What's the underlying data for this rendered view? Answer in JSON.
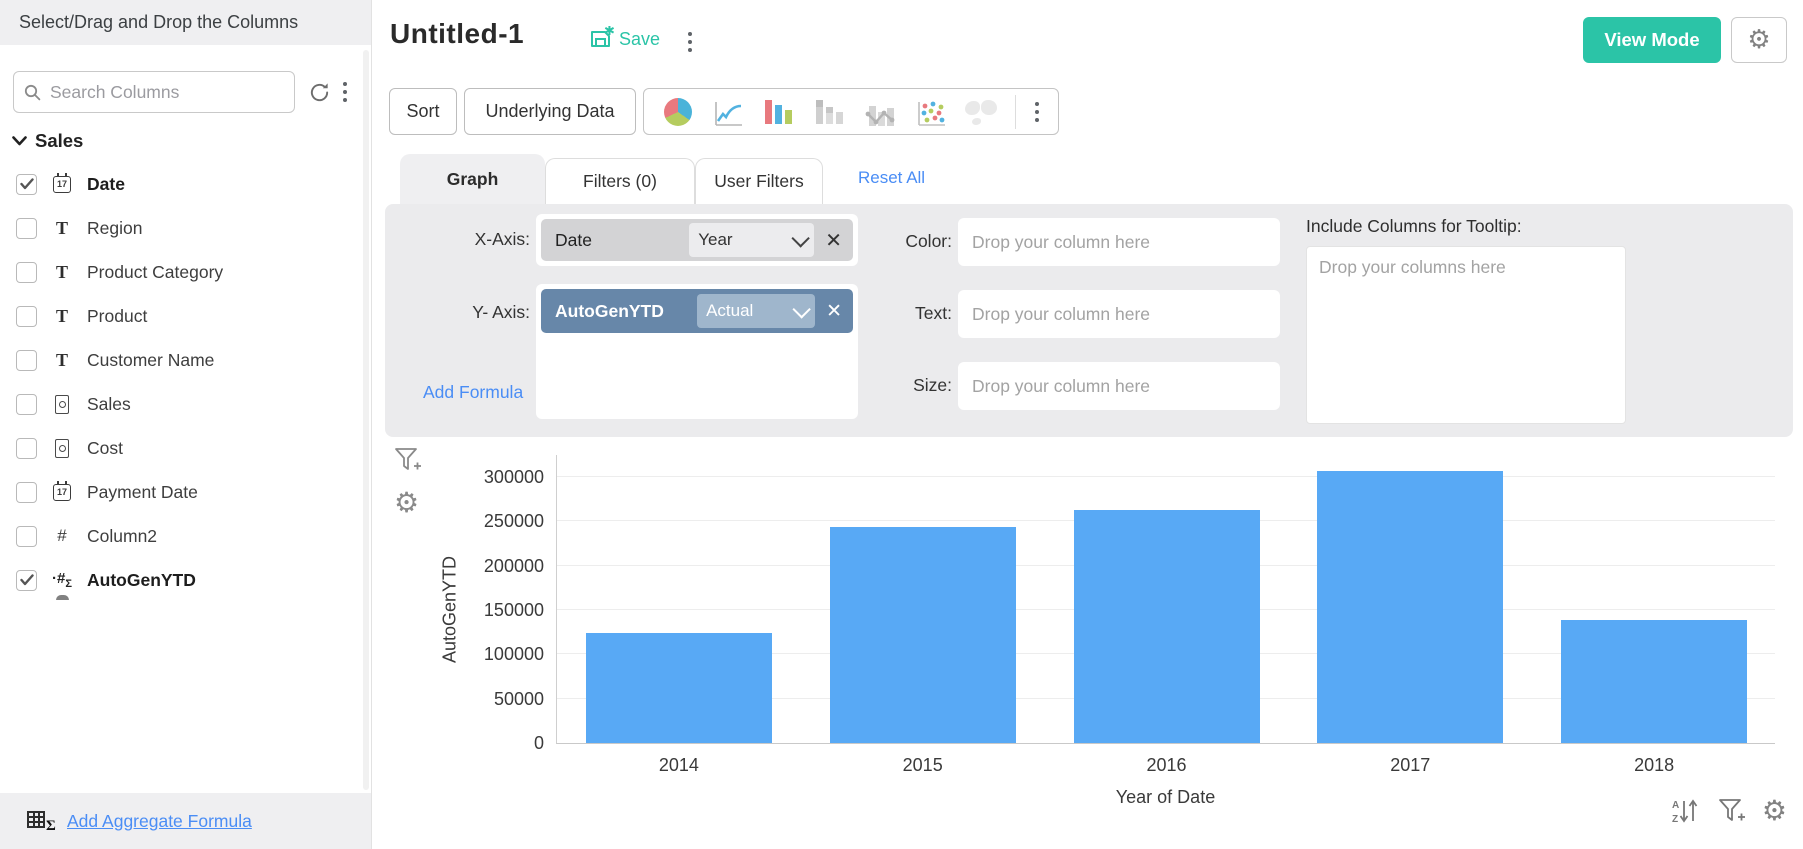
{
  "sidebar": {
    "header": "Select/Drag and Drop the Columns",
    "search_placeholder": "Search Columns",
    "section_label": "Sales",
    "items": [
      {
        "label": "Date",
        "type": "date",
        "checked": true,
        "bold": true
      },
      {
        "label": "Region",
        "type": "text",
        "checked": false,
        "bold": false
      },
      {
        "label": "Product Category",
        "type": "text",
        "checked": false,
        "bold": false
      },
      {
        "label": "Product",
        "type": "text",
        "checked": false,
        "bold": false
      },
      {
        "label": "Customer Name",
        "type": "text",
        "checked": false,
        "bold": false
      },
      {
        "label": "Sales",
        "type": "currency",
        "checked": false,
        "bold": false
      },
      {
        "label": "Cost",
        "type": "currency",
        "checked": false,
        "bold": false
      },
      {
        "label": "Payment Date",
        "type": "date",
        "checked": false,
        "bold": false
      },
      {
        "label": "Column2",
        "type": "number",
        "checked": false,
        "bold": false
      },
      {
        "label": "AutoGenYTD",
        "type": "formula",
        "checked": true,
        "bold": true
      }
    ],
    "footer_link": "Add Aggregate Formula"
  },
  "header": {
    "title": "Untitled-1",
    "save_label": "Save",
    "view_mode_label": "View Mode"
  },
  "toolbar": {
    "sort_label": "Sort",
    "underlying_data_label": "Underlying Data",
    "chart_icons": [
      {
        "name": "pie-chart-icon"
      },
      {
        "name": "line-chart-icon"
      },
      {
        "name": "bar-chart-icon"
      },
      {
        "name": "stacked-bar-chart-icon"
      },
      {
        "name": "combo-chart-icon"
      },
      {
        "name": "scatter-chart-icon"
      },
      {
        "name": "map-chart-icon"
      }
    ]
  },
  "tabs": {
    "graph": "Graph",
    "filters": "Filters (0)",
    "user_filters": "User Filters",
    "reset_all": "Reset All"
  },
  "axis_panel": {
    "x_axis_label": "X-Axis:",
    "x_column": "Date",
    "x_function": "Year",
    "y_axis_label": "Y- Axis:",
    "y_column": "AutoGenYTD",
    "y_function": "Actual",
    "add_formula": "Add Formula",
    "color_label": "Color:",
    "text_label": "Text:",
    "size_label": "Size:",
    "drop_column_placeholder": "Drop your column here",
    "tooltip_label": "Include Columns for Tooltip:",
    "tooltip_placeholder": "Drop your columns here"
  },
  "chart_data": {
    "type": "bar",
    "categories": [
      "2014",
      "2015",
      "2016",
      "2017",
      "2018"
    ],
    "values": [
      124000,
      244000,
      263000,
      307000,
      139000
    ],
    "title": "",
    "xlabel": "Year of Date",
    "ylabel": "AutoGenYTD",
    "yticks": [
      0,
      50000,
      100000,
      150000,
      200000,
      250000,
      300000
    ],
    "ylim": [
      0,
      300000
    ],
    "grid": true,
    "legend": "none",
    "bar_color": "#58a9f5"
  },
  "colors": {
    "accent_teal": "#2bc4a7",
    "link_blue": "#4a8df5",
    "bar_blue": "#58a9f5",
    "chip_blue": "#6787a9",
    "panel_gray": "#ebebed"
  }
}
